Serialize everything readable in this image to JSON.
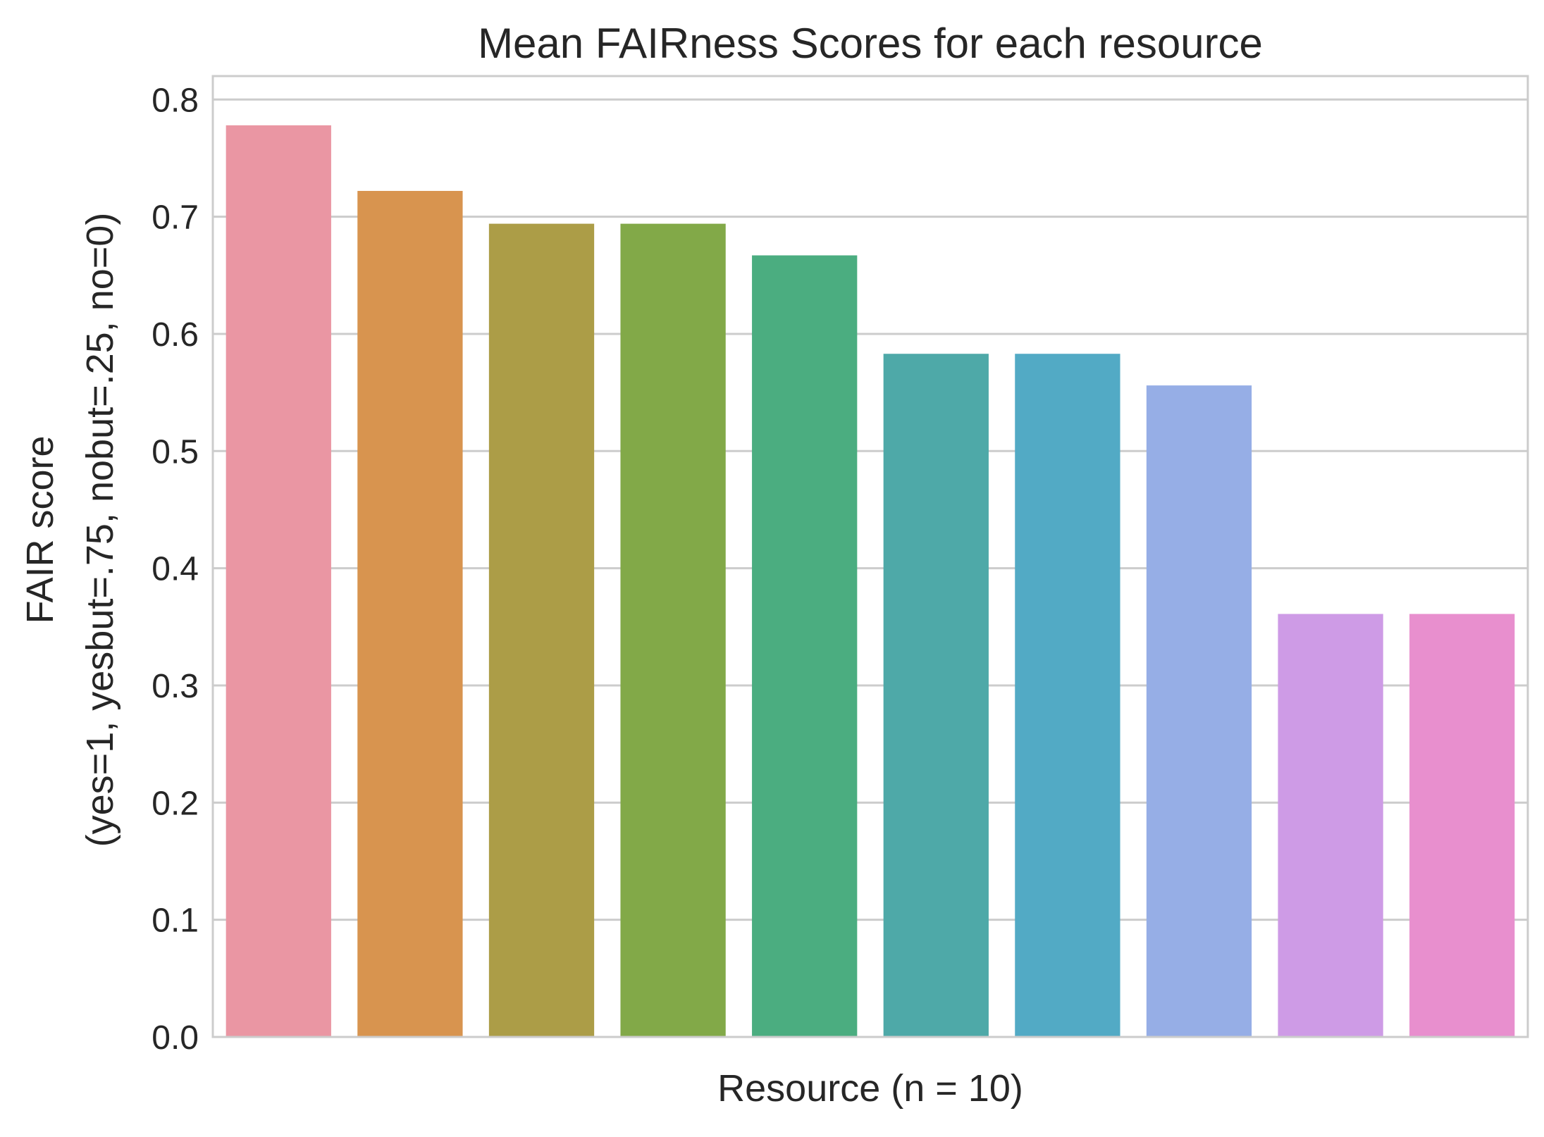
{
  "chart_data": {
    "type": "bar",
    "title": "Mean FAIRness Scores for each resource",
    "xlabel": "Resource (n = 10)",
    "ylabel_lines": [
      "FAIR score",
      "(yes=1, yesbut=.75, nobut=.25, no=0)"
    ],
    "ylim": [
      0,
      0.82
    ],
    "yticks": [
      0.0,
      0.1,
      0.2,
      0.3,
      0.4,
      0.5,
      0.6,
      0.7,
      0.8
    ],
    "ytick_labels": [
      "0.0",
      "0.1",
      "0.2",
      "0.3",
      "0.4",
      "0.5",
      "0.6",
      "0.7",
      "0.8"
    ],
    "grid": true,
    "values": [
      0.778,
      0.722,
      0.694,
      0.694,
      0.667,
      0.583,
      0.583,
      0.556,
      0.361,
      0.361
    ],
    "colors": [
      "#ea96a3",
      "#d8944f",
      "#ac9d47",
      "#82a948",
      "#4bad80",
      "#4ea9a8",
      "#52aac5",
      "#96aee6",
      "#ce9be6",
      "#e88fce"
    ]
  }
}
